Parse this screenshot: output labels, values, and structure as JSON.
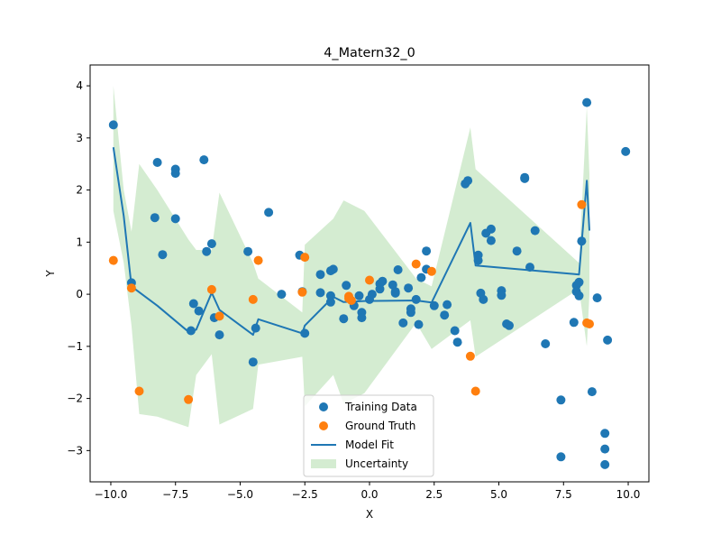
{
  "chart_data": {
    "type": "scatter",
    "title": "4_Matern32_0",
    "xlabel": "X",
    "ylabel": "Y",
    "xlim": [
      -10.8,
      10.8
    ],
    "ylim": [
      -3.6,
      4.4
    ],
    "x_ticks": [
      -10.0,
      -7.5,
      -5.0,
      -2.5,
      0.0,
      2.5,
      5.0,
      7.5,
      10.0
    ],
    "x_tick_labels": [
      "−10.0",
      "−7.5",
      "−5.0",
      "−2.5",
      "0.0",
      "2.5",
      "5.0",
      "7.5",
      "10.0"
    ],
    "y_ticks": [
      -3,
      -2,
      -1,
      0,
      1,
      2,
      3,
      4
    ],
    "y_tick_labels": [
      "−3",
      "−2",
      "−1",
      "0",
      "1",
      "2",
      "3",
      "4"
    ],
    "grid": false,
    "legend_position": "lower center",
    "colors": {
      "training": "#1f77b4",
      "ground_truth": "#ff7f0e",
      "model_fit": "#1f77b4",
      "uncertainty": "#d4ecd1"
    },
    "series": [
      {
        "name": "Training Data",
        "kind": "scatter",
        "points": [
          [
            -9.9,
            3.25
          ],
          [
            -9.2,
            0.22
          ],
          [
            -8.2,
            2.53
          ],
          [
            -7.5,
            2.4
          ],
          [
            -7.5,
            2.32
          ],
          [
            -8.3,
            1.47
          ],
          [
            -7.5,
            1.45
          ],
          [
            -8.0,
            0.76
          ],
          [
            -6.4,
            2.58
          ],
          [
            -6.1,
            0.97
          ],
          [
            -6.3,
            0.82
          ],
          [
            -6.8,
            -0.18
          ],
          [
            -6.6,
            -0.32
          ],
          [
            -6.9,
            -0.7
          ],
          [
            -6.0,
            -0.45
          ],
          [
            -5.8,
            -0.78
          ],
          [
            -4.7,
            0.82
          ],
          [
            -3.9,
            1.57
          ],
          [
            -4.4,
            -0.65
          ],
          [
            -4.5,
            -1.3
          ],
          [
            -3.4,
            0.0
          ],
          [
            -2.7,
            0.75
          ],
          [
            -2.6,
            0.05
          ],
          [
            -2.5,
            -0.75
          ],
          [
            -1.9,
            0.38
          ],
          [
            -1.9,
            0.03
          ],
          [
            -1.5,
            0.45
          ],
          [
            -1.4,
            0.48
          ],
          [
            -1.5,
            -0.03
          ],
          [
            -1.5,
            -0.15
          ],
          [
            -0.9,
            0.17
          ],
          [
            -1.0,
            -0.47
          ],
          [
            -0.6,
            -0.22
          ],
          [
            -0.4,
            -0.03
          ],
          [
            -0.3,
            -0.35
          ],
          [
            -0.3,
            -0.45
          ],
          [
            0.0,
            -0.1
          ],
          [
            0.1,
            0.0
          ],
          [
            0.4,
            0.1
          ],
          [
            0.4,
            0.2
          ],
          [
            0.5,
            0.25
          ],
          [
            0.9,
            0.18
          ],
          [
            1.0,
            0.02
          ],
          [
            1.0,
            0.05
          ],
          [
            1.1,
            0.47
          ],
          [
            1.3,
            -0.55
          ],
          [
            1.5,
            0.12
          ],
          [
            1.6,
            -0.28
          ],
          [
            1.6,
            -0.35
          ],
          [
            1.8,
            -0.1
          ],
          [
            1.9,
            -0.58
          ],
          [
            2.0,
            0.32
          ],
          [
            2.2,
            0.48
          ],
          [
            2.2,
            0.83
          ],
          [
            2.5,
            -0.22
          ],
          [
            2.9,
            -0.4
          ],
          [
            3.0,
            -0.2
          ],
          [
            3.3,
            -0.7
          ],
          [
            3.4,
            -0.92
          ],
          [
            3.7,
            2.12
          ],
          [
            3.8,
            2.18
          ],
          [
            4.2,
            0.75
          ],
          [
            4.2,
            0.65
          ],
          [
            4.3,
            0.02
          ],
          [
            4.4,
            -0.1
          ],
          [
            4.5,
            1.17
          ],
          [
            4.7,
            1.03
          ],
          [
            4.7,
            1.25
          ],
          [
            5.1,
            0.07
          ],
          [
            5.1,
            -0.02
          ],
          [
            5.3,
            -0.57
          ],
          [
            5.4,
            -0.6
          ],
          [
            5.7,
            0.83
          ],
          [
            6.0,
            2.22
          ],
          [
            6.0,
            2.24
          ],
          [
            6.2,
            0.52
          ],
          [
            6.4,
            1.22
          ],
          [
            6.8,
            -0.95
          ],
          [
            7.4,
            -2.03
          ],
          [
            7.4,
            -3.12
          ],
          [
            7.9,
            -0.54
          ],
          [
            8.0,
            0.17
          ],
          [
            8.0,
            0.05
          ],
          [
            8.1,
            0.23
          ],
          [
            8.1,
            -0.03
          ],
          [
            8.2,
            1.02
          ],
          [
            8.4,
            3.68
          ],
          [
            8.6,
            -1.87
          ],
          [
            8.8,
            -0.07
          ],
          [
            9.1,
            -2.67
          ],
          [
            9.1,
            -2.97
          ],
          [
            9.1,
            -3.27
          ],
          [
            9.2,
            -0.88
          ],
          [
            9.9,
            2.74
          ]
        ]
      },
      {
        "name": "Ground Truth",
        "kind": "scatter",
        "points": [
          [
            -9.9,
            0.65
          ],
          [
            -9.2,
            0.12
          ],
          [
            -8.9,
            -1.86
          ],
          [
            -7.0,
            -2.02
          ],
          [
            -6.1,
            0.09
          ],
          [
            -5.8,
            -0.42
          ],
          [
            -4.5,
            -0.1
          ],
          [
            -4.3,
            0.65
          ],
          [
            -2.5,
            0.71
          ],
          [
            -2.6,
            0.04
          ],
          [
            -0.8,
            -0.04
          ],
          [
            -0.8,
            -0.08
          ],
          [
            -0.7,
            -0.12
          ],
          [
            0.0,
            0.27
          ],
          [
            1.8,
            0.58
          ],
          [
            2.4,
            0.44
          ],
          [
            3.9,
            -1.19
          ],
          [
            4.1,
            -1.86
          ],
          [
            8.2,
            1.72
          ],
          [
            8.4,
            -0.55
          ],
          [
            8.5,
            -0.57
          ]
        ]
      },
      {
        "name": "Model Fit",
        "kind": "line",
        "points": [
          [
            -9.9,
            2.82
          ],
          [
            -9.5,
            1.5
          ],
          [
            -9.2,
            0.15
          ],
          [
            -8.2,
            -0.22
          ],
          [
            -7.0,
            -0.72
          ],
          [
            -6.7,
            -0.68
          ],
          [
            -6.1,
            0.03
          ],
          [
            -5.8,
            -0.3
          ],
          [
            -4.5,
            -0.78
          ],
          [
            -4.3,
            -0.48
          ],
          [
            -2.6,
            -0.75
          ],
          [
            -2.5,
            -0.6
          ],
          [
            -1.4,
            -0.05
          ],
          [
            -1.0,
            -0.15
          ],
          [
            -0.2,
            -0.13
          ],
          [
            1.8,
            -0.12
          ],
          [
            2.4,
            -0.16
          ],
          [
            3.9,
            1.37
          ],
          [
            4.1,
            0.55
          ],
          [
            8.1,
            0.38
          ],
          [
            8.4,
            2.18
          ],
          [
            8.5,
            1.22
          ]
        ]
      },
      {
        "name": "Uncertainty",
        "kind": "band",
        "x": [
          -9.9,
          -9.5,
          -9.2,
          -8.9,
          -8.2,
          -7.0,
          -6.7,
          -6.1,
          -5.8,
          -4.5,
          -4.3,
          -2.6,
          -2.5,
          -1.4,
          -1.0,
          -0.2,
          1.8,
          2.4,
          3.9,
          4.1,
          8.1,
          8.4,
          8.5
        ],
        "upper": [
          4.0,
          2.0,
          1.2,
          2.5,
          2.0,
          1.05,
          0.85,
          0.85,
          1.95,
          0.6,
          0.3,
          -0.35,
          0.95,
          1.45,
          1.8,
          1.6,
          0.3,
          0.15,
          3.2,
          2.4,
          0.6,
          3.6,
          2.3
        ],
        "lower": [
          1.6,
          0.6,
          -0.6,
          -2.3,
          -2.35,
          -2.55,
          -1.55,
          -1.15,
          -2.5,
          -2.2,
          -1.35,
          -1.2,
          -2.15,
          -1.55,
          -2.1,
          -1.9,
          -0.55,
          -1.05,
          -0.5,
          -1.2,
          0.1,
          -1.0,
          0.0
        ]
      }
    ]
  }
}
